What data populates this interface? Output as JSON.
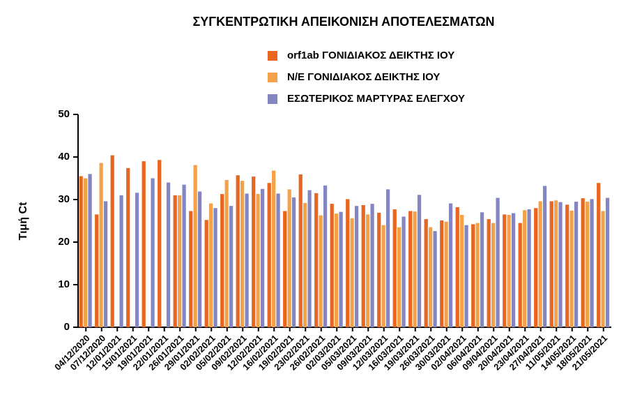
{
  "chart_data": {
    "type": "bar",
    "title": "ΣΥΓΚΕΝΤΡΩΤΙΚΗ ΑΠΕΙΚΟΝΙΣΗ ΑΠΟΤΕΛΕΣΜΑΤΩΝ",
    "y_label": "Τιμή Ct",
    "categories": [
      "04/12/2020",
      "07/12/2020",
      "12/01/2021",
      "15/01/2021",
      "19/01/2021",
      "22/01/2021",
      "26/01/2021",
      "29/01/2021",
      "02/02/2021",
      "05/02/2021",
      "09/02/2021",
      "12/02/2021",
      "16/02/2021",
      "19/02/2021",
      "23/02/2021",
      "26/02/2021",
      "02/03/2021",
      "05/03/2021",
      "09/03/2021",
      "12/03/2021",
      "16/03/2021",
      "19/03/2021",
      "26/03/2021",
      "30/03/2021",
      "02/04/2021",
      "06/04/2021",
      "09/04/2021",
      "20/04/2021",
      "23/04/2021",
      "27/04/2021",
      "11/05/2021",
      "14/05/2021",
      "18/05/2021",
      "21/05/2021"
    ],
    "series": [
      {
        "name": "orf1ab ΓΟΝΙΔΙΑΚΟΣ ΔΕΙΚΤΗΣ ΙΟΥ",
        "color": "#e8661f",
        "values": [
          35.5,
          26.5,
          40.4,
          37.4,
          39,
          39.3,
          31,
          27.3,
          25.2,
          31.3,
          35.7,
          35.4,
          33.9,
          27.3,
          35.9,
          31.5,
          29,
          30.1,
          28.7,
          26.9,
          27.7,
          27.3,
          25.4,
          25.1,
          28.2,
          24.2,
          25.4,
          26.5,
          24.5,
          28,
          29.6,
          28.8,
          30.3,
          33.9
        ]
      },
      {
        "name": "N/E ΓΟΝΙΔΙΑΚΟΣ ΔΕΙΚΤΗΣ ΙΟΥ",
        "color": "#f4a24a",
        "values": [
          35,
          38.6,
          null,
          null,
          null,
          null,
          31,
          38.1,
          29.1,
          34.6,
          34.4,
          31.3,
          36.8,
          32.4,
          29.2,
          26.3,
          26.7,
          25.6,
          26.5,
          24,
          23.5,
          27.2,
          23.5,
          24.8,
          26.4,
          24.5,
          24.5,
          26.4,
          27.5,
          29.6,
          29.8,
          27.4,
          29.5,
          27.3
        ]
      },
      {
        "name": "ΕΣΩΤΕΡΙΚΟΣ ΜΑΡΤΥΡΑΣ ΕΛΕΓΧΟΥ",
        "color": "#8486c2",
        "values": [
          36,
          29.6,
          31,
          31.6,
          35,
          34,
          33.5,
          31.9,
          28,
          28.5,
          31.4,
          32.5,
          31.4,
          30.5,
          32.2,
          33.3,
          27.1,
          28.5,
          29,
          32.4,
          26,
          31.1,
          22.6,
          29.1,
          24,
          27,
          30.4,
          26.8,
          27.7,
          33.2,
          29.4,
          29.5,
          30.1,
          30.4
        ]
      }
    ],
    "ylim": [
      0,
      50
    ],
    "yticks": [
      0,
      10,
      20,
      30,
      40,
      50
    ],
    "grid": false
  }
}
